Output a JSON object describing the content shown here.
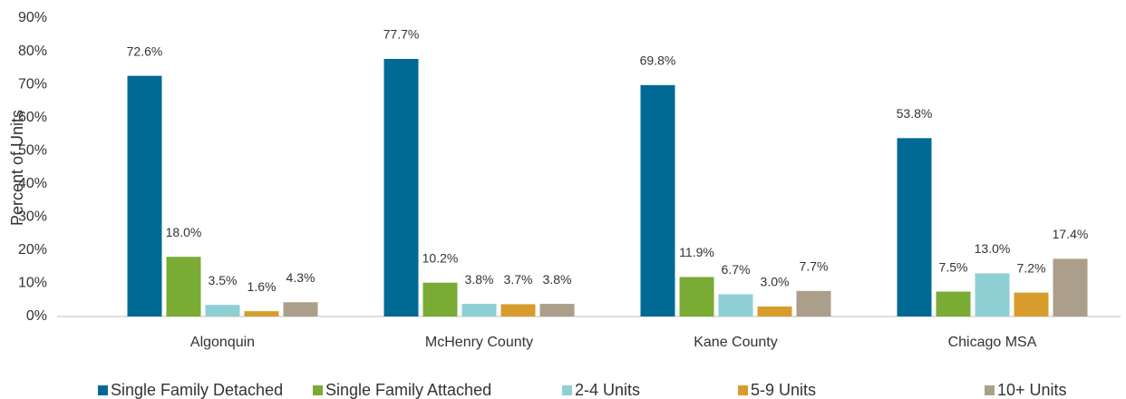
{
  "chart_data": {
    "type": "bar",
    "y_label": "Percent of Units",
    "categories": [
      "Algonquin",
      "McHenry County",
      "Kane County",
      "Chicago MSA"
    ],
    "series": [
      {
        "name": "Single Family Detached",
        "color": "#006a94",
        "values": [
          72.6,
          77.7,
          69.8,
          53.8
        ],
        "value_labels": [
          "72.6%",
          "77.7%",
          "69.8%",
          "53.8%"
        ]
      },
      {
        "name": "Single Family Attached",
        "color": "#7aab35",
        "values": [
          18.0,
          10.2,
          11.9,
          7.5
        ],
        "value_labels": [
          "18.0%",
          "10.2%",
          "11.9%",
          "7.5%"
        ]
      },
      {
        "name": "2-4 Units",
        "color": "#8ecfd4",
        "values": [
          3.5,
          3.8,
          6.7,
          13.0
        ],
        "value_labels": [
          "3.5%",
          "3.8%",
          "6.7%",
          "13.0%"
        ]
      },
      {
        "name": "5-9 Units",
        "color": "#d89c2c",
        "values": [
          1.6,
          3.7,
          3.0,
          7.2
        ],
        "value_labels": [
          "1.6%",
          "3.7%",
          "3.0%",
          "7.2%"
        ]
      },
      {
        "name": "10+ Units",
        "color": "#ab9e8b",
        "values": [
          4.3,
          3.8,
          7.7,
          17.4
        ],
        "value_labels": [
          "4.3%",
          "3.8%",
          "7.7%",
          "17.4%"
        ]
      }
    ],
    "ylim": [
      0,
      90
    ],
    "yticks": [
      {
        "value": 0,
        "label": "0%"
      },
      {
        "value": 10,
        "label": "10%"
      },
      {
        "value": 20,
        "label": "20%"
      },
      {
        "value": 30,
        "label": "30%"
      },
      {
        "value": 40,
        "label": "40%"
      },
      {
        "value": 50,
        "label": "50%"
      },
      {
        "value": 60,
        "label": "60%"
      },
      {
        "value": 70,
        "label": "70%"
      },
      {
        "value": 80,
        "label": "80%"
      },
      {
        "value": 90,
        "label": "90%"
      }
    ],
    "grid": false,
    "legend": "bottom"
  }
}
